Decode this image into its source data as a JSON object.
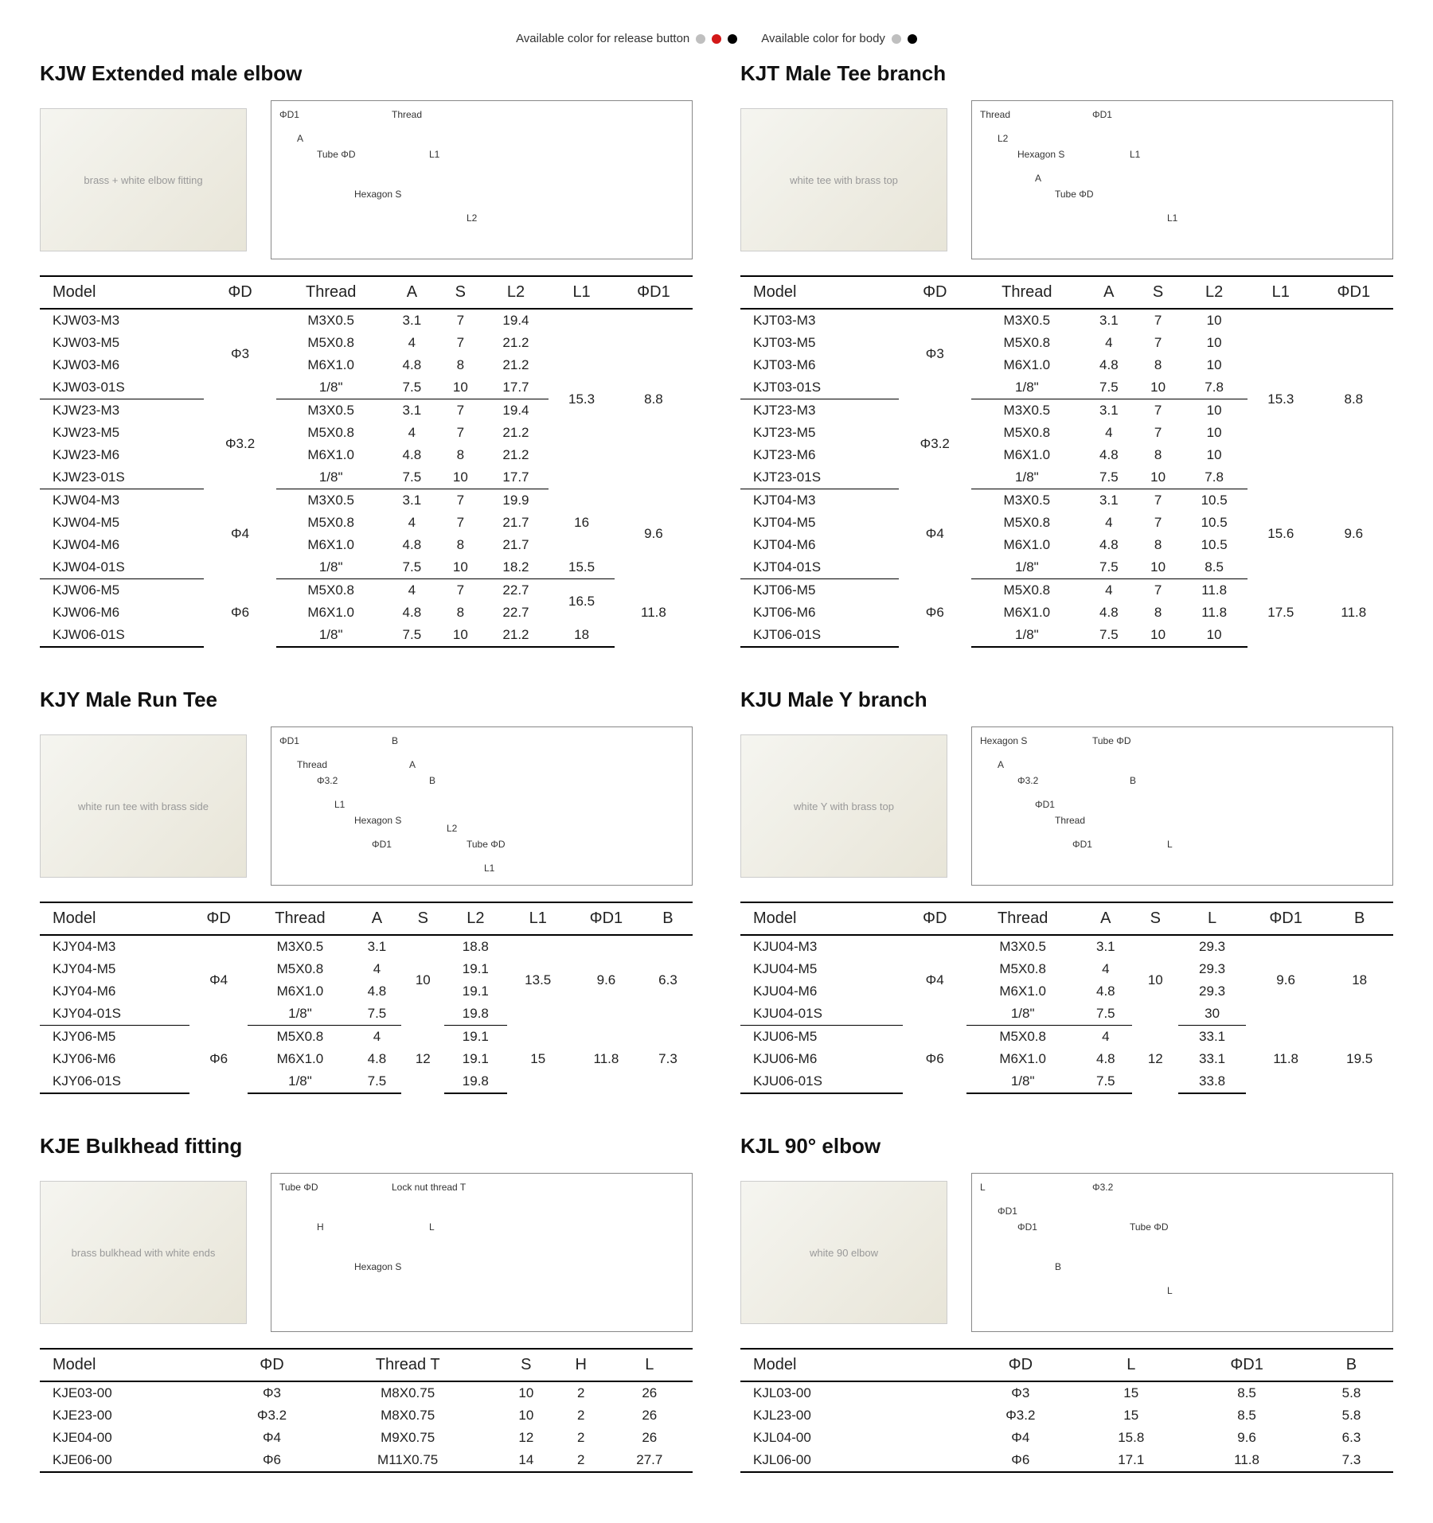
{
  "legend": {
    "release_label": "Available color for release button",
    "body_label": "Available color for body",
    "release_colors": [
      "#bfbfbf",
      "#d31818",
      "#000000"
    ],
    "body_colors": [
      "#bfbfbf",
      "#000000"
    ]
  },
  "sections": {
    "kjw": {
      "title": "KJW Extended male elbow",
      "photo_hint": "brass + white elbow fitting",
      "diagram_labels": [
        "ΦD1",
        "Tube ΦD",
        "Hexagon S",
        "Thread",
        "L1",
        "L2",
        "A"
      ],
      "columns": [
        "Model",
        "ΦD",
        "Thread",
        "A",
        "S",
        "L2",
        "L1",
        "ΦD1"
      ],
      "groups": [
        {
          "phiD": "Φ3",
          "L1": "15.3",
          "D1": "8.8",
          "rows": [
            [
              "KJW03-M3",
              "M3X0.5",
              "3.1",
              "7",
              "19.4"
            ],
            [
              "KJW03-M5",
              "M5X0.8",
              "4",
              "7",
              "21.2"
            ],
            [
              "KJW03-M6",
              "M6X1.0",
              "4.8",
              "8",
              "21.2"
            ],
            [
              "KJW03-01S",
              "1/8\"",
              "7.5",
              "10",
              "17.7"
            ]
          ],
          "share_l1_d1_with_next": true
        },
        {
          "phiD": "Φ3.2",
          "rows": [
            [
              "KJW23-M3",
              "M3X0.5",
              "3.1",
              "7",
              "19.4"
            ],
            [
              "KJW23-M5",
              "M5X0.8",
              "4",
              "7",
              "21.2"
            ],
            [
              "KJW23-M6",
              "M6X1.0",
              "4.8",
              "8",
              "21.2"
            ],
            [
              "KJW23-01S",
              "1/8\"",
              "7.5",
              "10",
              "17.7"
            ]
          ]
        },
        {
          "phiD": "Φ4",
          "D1": "9.6",
          "rows": [
            [
              "KJW04-M3",
              "M3X0.5",
              "3.1",
              "7",
              "19.9",
              null
            ],
            [
              "KJW04-M5",
              "M5X0.8",
              "4",
              "7",
              "21.7",
              "16"
            ],
            [
              "KJW04-M6",
              "M6X1.0",
              "4.8",
              "8",
              "21.7",
              null
            ],
            [
              "KJW04-01S",
              "1/8\"",
              "7.5",
              "10",
              "18.2",
              "15.5"
            ]
          ],
          "l1_mode": "split31"
        },
        {
          "phiD": "Φ6",
          "D1": "11.8",
          "rows": [
            [
              "KJW06-M5",
              "M5X0.8",
              "4",
              "7",
              "22.7",
              null
            ],
            [
              "KJW06-M6",
              "M6X1.0",
              "4.8",
              "8",
              "22.7",
              "16.5"
            ],
            [
              "KJW06-01S",
              "1/8\"",
              "7.5",
              "10",
              "21.2",
              "18"
            ]
          ],
          "l1_mode": "split21"
        }
      ]
    },
    "kjt": {
      "title": "KJT Male Tee branch",
      "photo_hint": "white tee with brass top",
      "diagram_labels": [
        "Thread",
        "Hexagon S",
        "Tube ΦD",
        "ΦD1",
        "L1",
        "L1",
        "L2",
        "A"
      ],
      "columns": [
        "Model",
        "ΦD",
        "Thread",
        "A",
        "S",
        "L2",
        "L1",
        "ΦD1"
      ],
      "groups": [
        {
          "phiD": "Φ3",
          "L1": "15.3",
          "D1": "8.8",
          "rows": [
            [
              "KJT03-M3",
              "M3X0.5",
              "3.1",
              "7",
              "10"
            ],
            [
              "KJT03-M5",
              "M5X0.8",
              "4",
              "7",
              "10"
            ],
            [
              "KJT03-M6",
              "M6X1.0",
              "4.8",
              "8",
              "10"
            ],
            [
              "KJT03-01S",
              "1/8\"",
              "7.5",
              "10",
              "7.8"
            ]
          ],
          "share_l1_d1_with_next": true
        },
        {
          "phiD": "Φ3.2",
          "rows": [
            [
              "KJT23-M3",
              "M3X0.5",
              "3.1",
              "7",
              "10"
            ],
            [
              "KJT23-M5",
              "M5X0.8",
              "4",
              "7",
              "10"
            ],
            [
              "KJT23-M6",
              "M6X1.0",
              "4.8",
              "8",
              "10"
            ],
            [
              "KJT23-01S",
              "1/8\"",
              "7.5",
              "10",
              "7.8"
            ]
          ]
        },
        {
          "phiD": "Φ4",
          "L1": "15.6",
          "D1": "9.6",
          "rows": [
            [
              "KJT04-M3",
              "M3X0.5",
              "3.1",
              "7",
              "10.5"
            ],
            [
              "KJT04-M5",
              "M5X0.8",
              "4",
              "7",
              "10.5"
            ],
            [
              "KJT04-M6",
              "M6X1.0",
              "4.8",
              "8",
              "10.5"
            ],
            [
              "KJT04-01S",
              "1/8\"",
              "7.5",
              "10",
              "8.5"
            ]
          ]
        },
        {
          "phiD": "Φ6",
          "L1": "17.5",
          "D1": "11.8",
          "rows": [
            [
              "KJT06-M5",
              "M5X0.8",
              "4",
              "7",
              "11.8"
            ],
            [
              "KJT06-M6",
              "M6X1.0",
              "4.8",
              "8",
              "11.8"
            ],
            [
              "KJT06-01S",
              "1/8\"",
              "7.5",
              "10",
              "10"
            ]
          ]
        }
      ]
    },
    "kjy": {
      "title": "KJY Male Run Tee",
      "photo_hint": "white run tee with brass side",
      "diagram_labels": [
        "ΦD1",
        "Φ3.2",
        "Hexagon S",
        "B",
        "B",
        "Tube ΦD",
        "Thread",
        "L1",
        "ΦD1",
        "A",
        "L2",
        "L1"
      ],
      "columns": [
        "Model",
        "ΦD",
        "Thread",
        "A",
        "S",
        "L2",
        "L1",
        "ΦD1",
        "B"
      ],
      "groups": [
        {
          "phiD": "Φ4",
          "S": "10",
          "L1": "13.5",
          "D1": "9.6",
          "B": "6.3",
          "rows": [
            [
              "KJY04-M3",
              "M3X0.5",
              "3.1",
              "18.8"
            ],
            [
              "KJY04-M5",
              "M5X0.8",
              "4",
              "19.1"
            ],
            [
              "KJY04-M6",
              "M6X1.0",
              "4.8",
              "19.1"
            ],
            [
              "KJY04-01S",
              "1/8\"",
              "7.5",
              "19.8"
            ]
          ]
        },
        {
          "phiD": "Φ6",
          "S": "12",
          "L1": "15",
          "D1": "11.8",
          "B": "7.3",
          "rows": [
            [
              "KJY06-M5",
              "M5X0.8",
              "4",
              "19.1"
            ],
            [
              "KJY06-M6",
              "M6X1.0",
              "4.8",
              "19.1"
            ],
            [
              "KJY06-01S",
              "1/8\"",
              "7.5",
              "19.8"
            ]
          ]
        }
      ]
    },
    "kju": {
      "title": "KJU Male Y branch",
      "photo_hint": "white Y with brass top",
      "diagram_labels": [
        "Hexagon S",
        "Φ3.2",
        "Thread",
        "Tube ΦD",
        "B",
        "L",
        "A",
        "ΦD1",
        "ΦD1"
      ],
      "columns": [
        "Model",
        "ΦD",
        "Thread",
        "A",
        "S",
        "L",
        "ΦD1",
        "B"
      ],
      "groups": [
        {
          "phiD": "Φ4",
          "S": "10",
          "D1": "9.6",
          "B": "18",
          "rows": [
            [
              "KJU04-M3",
              "M3X0.5",
              "3.1",
              "29.3"
            ],
            [
              "KJU04-M5",
              "M5X0.8",
              "4",
              "29.3"
            ],
            [
              "KJU04-M6",
              "M6X1.0",
              "4.8",
              "29.3"
            ],
            [
              "KJU04-01S",
              "1/8\"",
              "7.5",
              "30"
            ]
          ]
        },
        {
          "phiD": "Φ6",
          "S": "12",
          "D1": "11.8",
          "B": "19.5",
          "rows": [
            [
              "KJU06-M5",
              "M5X0.8",
              "4",
              "33.1"
            ],
            [
              "KJU06-M6",
              "M6X1.0",
              "4.8",
              "33.1"
            ],
            [
              "KJU06-01S",
              "1/8\"",
              "7.5",
              "33.8"
            ]
          ]
        }
      ]
    },
    "kje": {
      "title": "KJE Bulkhead fitting",
      "photo_hint": "brass bulkhead with white ends",
      "diagram_labels": [
        "Tube ΦD",
        "H",
        "Hexagon S",
        "Lock nut thread T",
        "L"
      ],
      "columns": [
        "Model",
        "ΦD",
        "Thread T",
        "S",
        "H",
        "L"
      ],
      "rows": [
        [
          "KJE03-00",
          "Φ3",
          "M8X0.75",
          "10",
          "2",
          "26"
        ],
        [
          "KJE23-00",
          "Φ3.2",
          "M8X0.75",
          "10",
          "2",
          "26"
        ],
        [
          "KJE04-00",
          "Φ4",
          "M9X0.75",
          "12",
          "2",
          "26"
        ],
        [
          "KJE06-00",
          "Φ6",
          "M11X0.75",
          "14",
          "2",
          "27.7"
        ]
      ]
    },
    "kjl": {
      "title": "KJL 90° elbow",
      "photo_hint": "white 90 elbow",
      "diagram_labels": [
        "L",
        "ΦD1",
        "B",
        "Φ3.2",
        "Tube ΦD",
        "L",
        "ΦD1"
      ],
      "columns": [
        "Model",
        "ΦD",
        "L",
        "ΦD1",
        "B"
      ],
      "rows": [
        [
          "KJL03-00",
          "Φ3",
          "15",
          "8.5",
          "5.8"
        ],
        [
          "KJL23-00",
          "Φ3.2",
          "15",
          "8.5",
          "5.8"
        ],
        [
          "KJL04-00",
          "Φ4",
          "15.8",
          "9.6",
          "6.3"
        ],
        [
          "KJL06-00",
          "Φ6",
          "17.1",
          "11.8",
          "7.3"
        ]
      ]
    }
  }
}
